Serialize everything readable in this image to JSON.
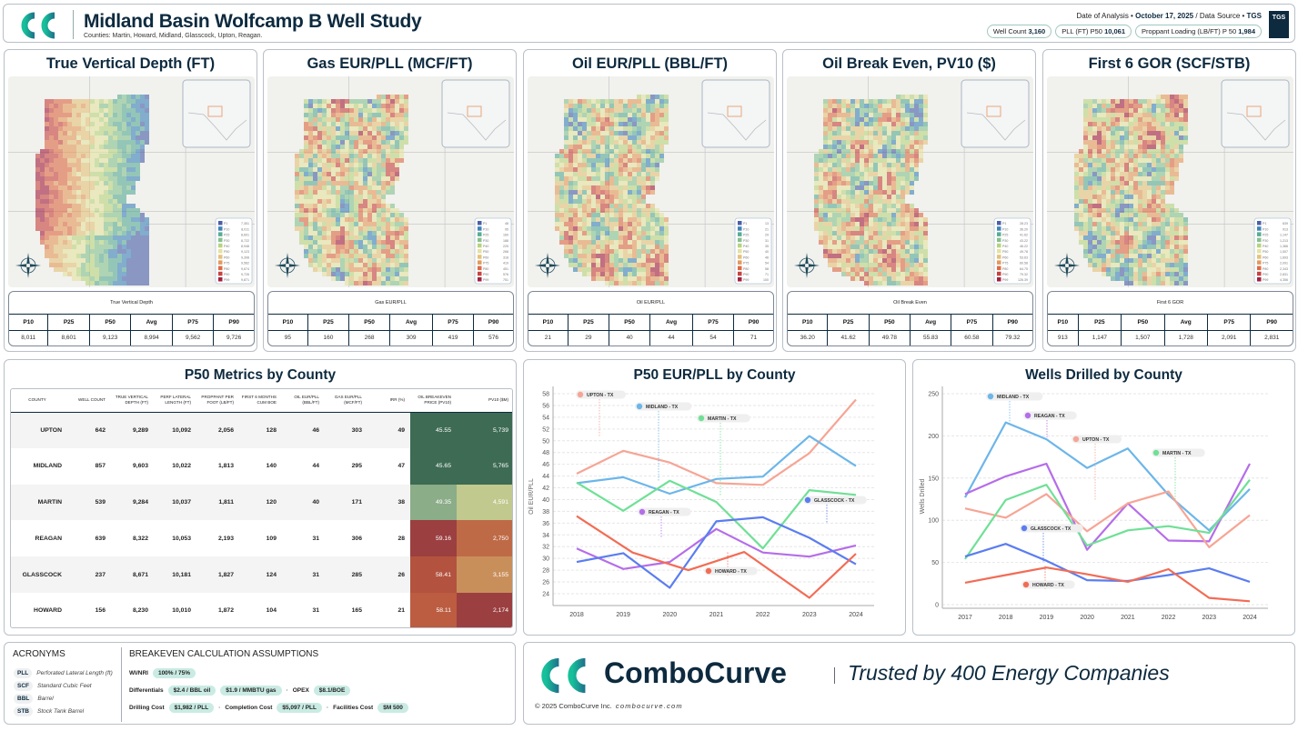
{
  "header": {
    "title": "Midland Basin Wolfcamp B Well Study",
    "subtitle": "Counties: Martin, Howard, Midland, Glasscock, Upton, Reagan.",
    "date_label": "Date of Analysis •",
    "date": "October 17, 2025",
    "source_label": "/ Data Source •",
    "source": "TGS",
    "pills": [
      {
        "label": "Well Count",
        "value": "3,160"
      },
      {
        "label": "PLL (FT) P50",
        "value": "10,061"
      },
      {
        "label": "Proppant Loading (LB/FT) P 50",
        "value": "1,984"
      }
    ],
    "tgs_logo": "TGS"
  },
  "stat_headers": [
    "P10",
    "P25",
    "P50",
    "Avg",
    "P75",
    "P90"
  ],
  "legend_colors": [
    "#4a5fa8",
    "#3d82b8",
    "#5aab94",
    "#86c190",
    "#b8d37f",
    "#e4e29f",
    "#e3c27b",
    "#e39a5c",
    "#db6b45",
    "#c7433f",
    "#a2203f"
  ],
  "maps": [
    {
      "title": "True Vertical Depth (FT)",
      "table_title": "True Vertical Depth",
      "stats": [
        "8,011",
        "8,601",
        "9,123",
        "8,994",
        "9,562",
        "9,726"
      ],
      "legend": [
        [
          "P1",
          "7,351"
        ],
        [
          "P10",
          "8,011"
        ],
        [
          "P25",
          "8,601"
        ],
        [
          "P30",
          "8,722"
        ],
        [
          "P40",
          "8,948"
        ],
        [
          "P50",
          "9,123"
        ],
        [
          "P60",
          "9,308"
        ],
        [
          "P75",
          "9,562"
        ],
        [
          "P80",
          "9,674"
        ],
        [
          "P90",
          "9,726"
        ],
        [
          "P99",
          "9,871"
        ]
      ]
    },
    {
      "title": "Gas EUR/PLL (MCF/FT)",
      "table_title": "Gas EUR/PLL",
      "stats": [
        "95",
        "160",
        "268",
        "309",
        "419",
        "576"
      ],
      "legend": [
        [
          "P1",
          "48"
        ],
        [
          "P10",
          "95"
        ],
        [
          "P25",
          "160"
        ],
        [
          "P30",
          "188"
        ],
        [
          "P40",
          "225"
        ],
        [
          "P50",
          "268"
        ],
        [
          "P60",
          "318"
        ],
        [
          "P75",
          "419"
        ],
        [
          "P80",
          "451"
        ],
        [
          "P90",
          "576"
        ],
        [
          "P99",
          "751"
        ]
      ]
    },
    {
      "title": "Oil EUR/PLL (BBL/FT)",
      "table_title": "Oil EUR/PLL",
      "stats": [
        "21",
        "29",
        "40",
        "44",
        "54",
        "71"
      ],
      "legend": [
        [
          "P1",
          "13"
        ],
        [
          "P10",
          "21"
        ],
        [
          "P25",
          "29"
        ],
        [
          "P30",
          "31"
        ],
        [
          "P40",
          "35"
        ],
        [
          "P50",
          "40"
        ],
        [
          "P60",
          "46"
        ],
        [
          "P75",
          "54"
        ],
        [
          "P80",
          "58"
        ],
        [
          "P90",
          "71"
        ],
        [
          "P99",
          "100"
        ]
      ]
    },
    {
      "title": "Oil Break Even, PV10 ($)",
      "table_title": "Oil Break Even",
      "stats": [
        "36.20",
        "41.62",
        "49.78",
        "55.83",
        "60.58",
        "79.32"
      ],
      "legend": [
        [
          "P1",
          "28.23"
        ],
        [
          "P10",
          "36.20"
        ],
        [
          "P25",
          "41.62"
        ],
        [
          "P30",
          "43.22"
        ],
        [
          "P40",
          "46.22"
        ],
        [
          "P50",
          "49.78"
        ],
        [
          "P60",
          "53.63"
        ],
        [
          "P75",
          "60.58"
        ],
        [
          "P80",
          "64.75"
        ],
        [
          "P90",
          "79.32"
        ],
        [
          "P99",
          "126.39"
        ]
      ]
    },
    {
      "title": "First 6 GOR (SCF/STB)",
      "table_title": "First 6 GOR",
      "stats": [
        "913",
        "1,147",
        "1,507",
        "1,728",
        "2,091",
        "2,831"
      ],
      "legend": [
        [
          "P1",
          "639"
        ],
        [
          "P10",
          "913"
        ],
        [
          "P25",
          "1,147"
        ],
        [
          "P30",
          "1,213"
        ],
        [
          "P40",
          "1,366"
        ],
        [
          "P50",
          "1,507"
        ],
        [
          "P60",
          "1,693"
        ],
        [
          "P75",
          "2,091"
        ],
        [
          "P80",
          "2,343"
        ],
        [
          "P90",
          "2,831"
        ],
        [
          "P99",
          "4,356"
        ]
      ]
    }
  ],
  "county_table": {
    "title": "P50 Metrics by County",
    "headers": [
      "COUNTY",
      "WELL COUNT",
      "TRUE VERTICAL DEPTH (FT)",
      "PERF LATERAL LENGTH (FT)",
      "PROPPANT PER FOOT (LB/FT)",
      "FIRST 6 MONTHS CUM BOE",
      "OIL EUR/PLL (BBL/FT)",
      "GAS EUR/PLL (MCF/FT)",
      "IRR (%)",
      "OIL BREAKEVEN PRICE (PV10)",
      "PV10 ($M)"
    ],
    "rows": [
      {
        "cells": [
          "UPTON",
          "642",
          "9,289",
          "10,092",
          "2,056",
          "128",
          "46",
          "303",
          "49",
          "45.55",
          "5,739"
        ],
        "colors": [
          "#3d6b53",
          "#3d6b53"
        ]
      },
      {
        "cells": [
          "MIDLAND",
          "857",
          "9,603",
          "10,022",
          "1,813",
          "140",
          "44",
          "295",
          "47",
          "45.65",
          "5,765"
        ],
        "colors": [
          "#3d6b53",
          "#3d6b53"
        ]
      },
      {
        "cells": [
          "MARTIN",
          "539",
          "9,284",
          "10,037",
          "1,811",
          "120",
          "40",
          "171",
          "38",
          "49.35",
          "4,591"
        ],
        "colors": [
          "#8bad88",
          "#c1c98e"
        ]
      },
      {
        "cells": [
          "REAGAN",
          "639",
          "8,322",
          "10,053",
          "2,193",
          "109",
          "31",
          "306",
          "28",
          "59.16",
          "2,750"
        ],
        "colors": [
          "#9b3f40",
          "#bf6a46"
        ]
      },
      {
        "cells": [
          "GLASSCOCK",
          "237",
          "8,671",
          "10,181",
          "1,827",
          "124",
          "31",
          "285",
          "26",
          "58.41",
          "3,155"
        ],
        "colors": [
          "#b3533f",
          "#c98f5b"
        ]
      },
      {
        "cells": [
          "HOWARD",
          "156",
          "8,230",
          "10,010",
          "1,872",
          "104",
          "31",
          "165",
          "21",
          "58.11",
          "2,174"
        ],
        "colors": [
          "#bc5c40",
          "#9b3f40"
        ]
      }
    ]
  },
  "chart_data": [
    {
      "type": "line",
      "title": "P50 EUR/PLL by County",
      "xlabel": "",
      "ylabel": "Oil EUR/PLL",
      "xlim": [
        2018,
        2024
      ],
      "ylim": [
        24,
        58
      ],
      "x": [
        2018,
        2019,
        2020,
        2021,
        2022,
        2023,
        2024
      ],
      "xticks": [
        "2018",
        "2019",
        "2020",
        "2021",
        "2022",
        "2023",
        "2024"
      ],
      "yticks": [
        "24",
        "26",
        "28",
        "30",
        "32",
        "34",
        "36",
        "38",
        "40",
        "42",
        "44",
        "46",
        "48",
        "50",
        "52",
        "54",
        "56",
        "58"
      ],
      "series": [
        {
          "name": "UPTON - TX",
          "color": "#f6a595",
          "values": [
            44.4,
            48.3,
            46.3,
            42.8,
            42.5,
            47.9,
            57.0
          ]
        },
        {
          "name": "MIDLAND - TX",
          "color": "#6cb6e9",
          "values": [
            42.8,
            43.8,
            41.0,
            43.5,
            43.9,
            50.8,
            45.7
          ]
        },
        {
          "name": "MARTIN - TX",
          "color": "#6fe096",
          "values": [
            42.9,
            38.1,
            43.2,
            39.6,
            31.7,
            41.6,
            40.8
          ]
        },
        {
          "name": "REAGAN - TX",
          "color": "#b56de9",
          "values": [
            31.7,
            28.2,
            29.4,
            35.0,
            31.0,
            30.3,
            32.2
          ]
        },
        {
          "name": "GLASSCOCK - TX",
          "color": "#5b7df0",
          "values": [
            29.4,
            30.9,
            25.0,
            36.3,
            37.0,
            33.5,
            29.0
          ]
        },
        {
          "name": "HOWARD - TX",
          "color": "#f26c55",
          "x": [
            2018,
            2019.2,
            2020,
            2020.4,
            2021.6,
            2023,
            2024
          ],
          "values": [
            37.2,
            31.0,
            29.0,
            28.0,
            31.1,
            23.3,
            30.8
          ]
        }
      ]
    },
    {
      "type": "line",
      "title": "Wells Drilled by County",
      "xlabel": "",
      "ylabel": "Wells Drilled",
      "xlim": [
        2017,
        2024
      ],
      "ylim": [
        0,
        250
      ],
      "x": [
        2017,
        2018,
        2019,
        2020,
        2021,
        2022,
        2023,
        2024
      ],
      "xticks": [
        "2017",
        "2018",
        "2019",
        "2020",
        "2021",
        "2022",
        "2023",
        "2024"
      ],
      "yticks": [
        "0",
        "50",
        "100",
        "150",
        "200",
        "250"
      ],
      "series": [
        {
          "name": "MIDLAND - TX",
          "color": "#6cb6e9",
          "values": [
            127,
            216,
            196,
            162,
            185,
            130,
            88,
            137
          ]
        },
        {
          "name": "REAGAN - TX",
          "color": "#b56de9",
          "values": [
            131,
            152,
            167,
            65,
            120,
            76,
            75,
            167
          ]
        },
        {
          "name": "UPTON - TX",
          "color": "#f6a595",
          "values": [
            114,
            103,
            131,
            87,
            120,
            134,
            68,
            106
          ]
        },
        {
          "name": "MARTIN - TX",
          "color": "#6fe096",
          "values": [
            54,
            124,
            142,
            70,
            88,
            93,
            85,
            148
          ]
        },
        {
          "name": "GLASSCOCK - TX",
          "color": "#5b7df0",
          "values": [
            57,
            72,
            52,
            29,
            28,
            35,
            43,
            27
          ]
        },
        {
          "name": "HOWARD - TX",
          "color": "#f26c55",
          "values": [
            26,
            35,
            44,
            36,
            27,
            42,
            8,
            4
          ]
        }
      ]
    }
  ],
  "acronyms": {
    "title": "ACRONYMS",
    "items": [
      [
        "PLL",
        "Perforated Lateral Length (ft)"
      ],
      [
        "SCF",
        "Standard Cubic Feet"
      ],
      [
        "BBL",
        "Barrel"
      ],
      [
        "STB",
        "Stock Tank Barrel"
      ]
    ]
  },
  "assumptions": {
    "title": "BREAKEVEN CALCULATION ASSUMPTIONS",
    "wi_label": "WI/NRI",
    "wi": "100% / 75%",
    "diff_label": "Differentials",
    "diff_oil": "$2.4 / BBL oil",
    "diff_gas": "$1.9 / MMBTU gas",
    "opex_label": "OPEX",
    "opex": "$8.1/BOE",
    "drill_label": "Drilling Cost",
    "drill": "$1,982 / PLL",
    "comp_label": "Completion Cost",
    "comp": "$5,097 / PLL",
    "fac_label": "Facilities Cost",
    "fac": "$M 500"
  },
  "footer": {
    "brand": "ComboCurve",
    "tagline": "Trusted by 400 Energy Companies",
    "copyright": "© 2025 ComboCurve Inc.",
    "url": "combocurve.com"
  }
}
